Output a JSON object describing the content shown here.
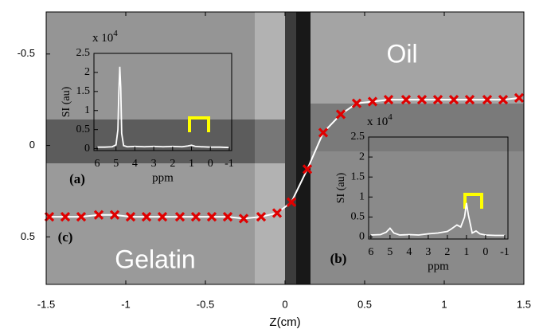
{
  "chart_data": [
    {
      "type": "line",
      "xlabel": "Z(cm)",
      "annotations": [
        "Oil",
        "Gelatin",
        "(a)",
        "(b)",
        "(c)"
      ],
      "xlim": [
        -1.5,
        1.5
      ],
      "xticks": [
        -1.5,
        -1,
        -0.5,
        0,
        0.5,
        1,
        1.5
      ],
      "ylim": [
        -0.73,
        0.76
      ],
      "yticks": [
        -0.5,
        0,
        0.5
      ],
      "y_inverted": true,
      "x": [
        -1.48,
        -1.38,
        -1.28,
        -1.17,
        -1.07,
        -0.97,
        -0.87,
        -0.77,
        -0.66,
        -0.56,
        -0.46,
        -0.36,
        -0.26,
        -0.15,
        -0.05,
        0.04,
        0.14,
        0.24,
        0.35,
        0.45,
        0.55,
        0.65,
        0.76,
        0.86,
        0.96,
        1.06,
        1.16,
        1.27,
        1.37,
        1.47
      ],
      "series": [
        {
          "line_color": "#ffffff",
          "marker_color": "#e00000",
          "values": [
            0.39,
            0.39,
            0.39,
            0.38,
            0.38,
            0.39,
            0.39,
            0.39,
            0.39,
            0.39,
            0.39,
            0.39,
            0.4,
            0.39,
            0.37,
            0.31,
            0.13,
            -0.07,
            -0.17,
            -0.23,
            -0.24,
            -0.25,
            -0.25,
            -0.25,
            -0.25,
            -0.25,
            -0.25,
            -0.25,
            -0.25,
            -0.26
          ]
        }
      ]
    },
    {
      "type": "line",
      "xlabel": "ppm",
      "ylabel": "SI (au)",
      "y_multiplier": "x 10",
      "y_multiplier_exponent": "4",
      "xlim": [
        6.17,
        -1.13
      ],
      "xticks": [
        6,
        5,
        4,
        3,
        2,
        1,
        0,
        -1
      ],
      "ylim": [
        -0.05,
        2.5
      ],
      "yticks": [
        0,
        0.5,
        1,
        1.5,
        2,
        2.5
      ],
      "x": [
        6,
        5.6,
        5.2,
        5.0,
        4.9,
        4.85,
        4.8,
        4.75,
        4.7,
        4.6,
        4.4,
        4,
        3.5,
        3,
        2.5,
        2,
        1.5,
        1.2,
        1.0,
        0.8,
        0.5,
        0,
        -0.5,
        -1
      ],
      "series": [
        {
          "line_color": "#ffffff",
          "values": [
            0.04,
            0.04,
            0.05,
            0.1,
            0.5,
            1.5,
            2.15,
            1.6,
            0.4,
            0.08,
            0.05,
            0.06,
            0.05,
            0.06,
            0.05,
            0.06,
            0.05,
            0.07,
            0.09,
            0.06,
            0.05,
            0.04,
            0.04,
            0.03
          ]
        }
      ]
    },
    {
      "type": "line",
      "xlabel": "ppm",
      "ylabel": "SI (au)",
      "y_multiplier": "x 10",
      "y_multiplier_exponent": "4",
      "xlim": [
        6.12,
        -1.17
      ],
      "xticks": [
        6,
        5,
        4,
        3,
        2,
        1,
        0,
        -1
      ],
      "ylim": [
        -0.05,
        2.5
      ],
      "yticks": [
        0,
        0.5,
        1,
        1.5,
        2,
        2.5
      ],
      "x": [
        6,
        5.5,
        5.2,
        5.0,
        4.8,
        4.5,
        4,
        3.5,
        3,
        2.5,
        2,
        1.8,
        1.5,
        1.3,
        1.1,
        1.0,
        0.9,
        0.7,
        0.5,
        0.3,
        0,
        -0.5,
        -1
      ],
      "series": [
        {
          "line_color": "#ffffff",
          "values": [
            0.05,
            0.06,
            0.12,
            0.22,
            0.1,
            0.05,
            0.06,
            0.05,
            0.08,
            0.1,
            0.14,
            0.2,
            0.3,
            0.25,
            0.5,
            0.85,
            0.55,
            0.1,
            0.15,
            0.08,
            0.05,
            0.04,
            0.04
          ]
        }
      ]
    }
  ]
}
